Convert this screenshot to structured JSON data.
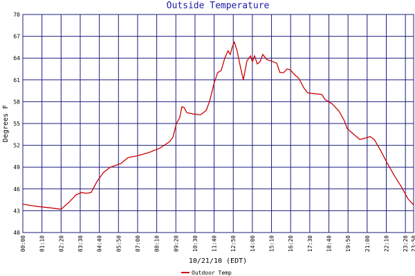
{
  "chart_data": {
    "type": "line",
    "title": "Outside Temperature",
    "x_label": "10/21/10 (EDT)",
    "y_label": "Degrees F",
    "xlim": [
      0,
      1430
    ],
    "xticks": [
      {
        "value": 0,
        "label": "00:00"
      },
      {
        "value": 70,
        "label": "01:10"
      },
      {
        "value": 140,
        "label": "02:20"
      },
      {
        "value": 210,
        "label": "03:30"
      },
      {
        "value": 280,
        "label": "04:40"
      },
      {
        "value": 350,
        "label": "05:50"
      },
      {
        "value": 420,
        "label": "07:00"
      },
      {
        "value": 490,
        "label": "08:10"
      },
      {
        "value": 560,
        "label": "09:20"
      },
      {
        "value": 630,
        "label": "10:30"
      },
      {
        "value": 700,
        "label": "11:40"
      },
      {
        "value": 770,
        "label": "12:50"
      },
      {
        "value": 840,
        "label": "14:00"
      },
      {
        "value": 910,
        "label": "15:10"
      },
      {
        "value": 980,
        "label": "16:20"
      },
      {
        "value": 1050,
        "label": "17:30"
      },
      {
        "value": 1120,
        "label": "18:40"
      },
      {
        "value": 1190,
        "label": "19:50"
      },
      {
        "value": 1260,
        "label": "21:00"
      },
      {
        "value": 1330,
        "label": "22:10"
      },
      {
        "value": 1400,
        "label": "23:20"
      },
      {
        "value": 1430,
        "label": "23:50"
      }
    ],
    "ylim": [
      40,
      70
    ],
    "yticks": [
      40,
      43,
      46,
      49,
      52,
      55,
      58,
      61,
      64,
      67,
      70
    ],
    "grid": true,
    "legend": "bottom",
    "x": [
      0,
      50,
      100,
      140,
      170,
      195,
      215,
      233,
      250,
      271,
      296,
      321,
      359,
      385,
      423,
      461,
      501,
      537,
      549,
      562,
      574,
      582,
      590,
      600,
      625,
      650,
      671,
      683,
      701,
      713,
      726,
      739,
      751,
      759,
      766,
      774,
      784,
      795,
      807,
      820,
      833,
      840,
      848,
      858,
      868,
      878,
      893,
      909,
      929,
      941,
      954,
      967,
      979,
      992,
      1010,
      1030,
      1043,
      1068,
      1094,
      1106,
      1132,
      1157,
      1175,
      1187,
      1208,
      1233,
      1253,
      1271,
      1286,
      1309,
      1334,
      1360,
      1385,
      1410,
      1430
    ],
    "series": [
      {
        "name": "Outdoor Temp",
        "color": "#cc0000",
        "values": [
          43.9,
          43.6,
          43.4,
          43.2,
          44.2,
          45.2,
          45.5,
          45.4,
          45.5,
          47,
          48.3,
          49,
          49.5,
          50.3,
          50.6,
          51,
          51.6,
          52.5,
          53.1,
          55,
          55.8,
          57.3,
          57.2,
          56.5,
          56.3,
          56.2,
          56.8,
          58,
          60.7,
          62,
          62.3,
          64,
          65,
          64.5,
          65.5,
          66.2,
          65,
          63,
          61,
          63.6,
          64.3,
          63.5,
          64.3,
          63.2,
          63.5,
          64.5,
          63.8,
          63.6,
          63.3,
          62,
          62,
          62.5,
          62.4,
          61.8,
          61.2,
          59.8,
          59.2,
          59.1,
          59,
          58.3,
          57.7,
          56.7,
          55.5,
          54.3,
          53.6,
          52.8,
          53,
          53.2,
          52.8,
          51.3,
          49.5,
          47.8,
          46.3,
          44.6,
          43.8
        ]
      }
    ]
  }
}
